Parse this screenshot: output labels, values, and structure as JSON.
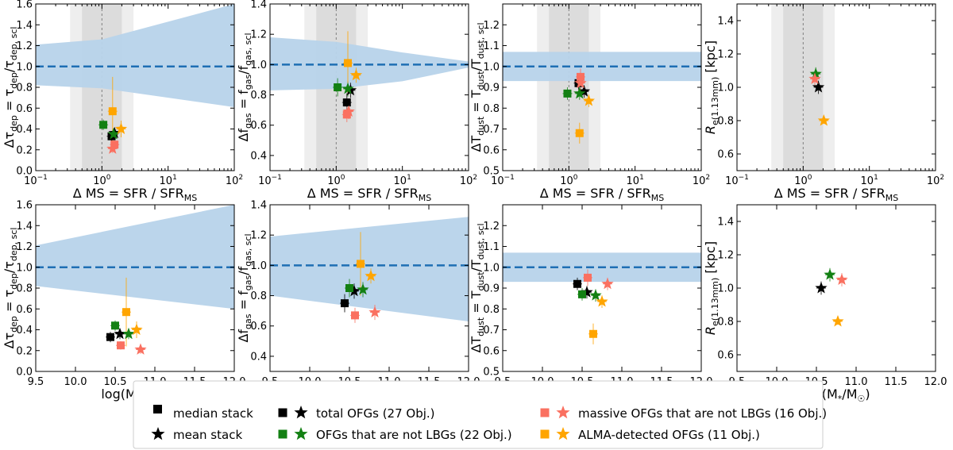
{
  "colors": {
    "total": "#000000",
    "not_lbg": "#138013",
    "massive": "#fa7060",
    "alma": "#ffa500",
    "band": "#b7d3ea",
    "ref_line": "#1f6fb4",
    "ms_inner": "#dcdcdc",
    "ms_outer": "#eeeeee"
  },
  "labels": {
    "xlabel_dms": "Δ MS = SFR / SFR",
    "xlabel_dms_sub": "MS",
    "xlabel_mass": "log(M",
    "xlabel_mass_star": "*",
    "xlabel_mass_mid": "/M",
    "xlabel_mass_sun": "☉",
    "xlabel_mass_end": ")",
    "xtick_log": [
      "10",
      "10",
      "10",
      "10"
    ],
    "xtick_log_exp": [
      "−1",
      "0",
      "1",
      "2"
    ],
    "xtick_mass": [
      "9.5",
      "10.0",
      "10.5",
      "11.0",
      "11.5",
      "12.0"
    ],
    "ylabel_tau_main": "Δτ",
    "ylabel_tau_sub": "dep",
    "ylabel_tau_eq": " = τ",
    "ylabel_tau_sub2": "dep",
    "ylabel_tau_div": "/τ",
    "ylabel_tau_sub3": "dep, scl",
    "ylabel_fgas_main": "Δf",
    "ylabel_fgas_sub": "gas",
    "ylabel_fgas_eq": " = f",
    "ylabel_fgas_sub2": "gas",
    "ylabel_fgas_div": "/f",
    "ylabel_fgas_sub3": "gas, scl",
    "ylabel_tdust_main": "ΔT",
    "ylabel_tdust_sub": "dust",
    "ylabel_tdust_eq": " = T",
    "ylabel_tdust_sub2": "dust",
    "ylabel_tdust_div": "/T",
    "ylabel_tdust_sub3": "dust, scl",
    "ylabel_re_main": "R",
    "ylabel_re_sub": "e(1.13mm)",
    "ylabel_re_unit": " [kpc]"
  },
  "legend": {
    "median_stack": "median stack",
    "mean_stack": "mean stack",
    "total": "total OFGs (27 Obj.)",
    "not_lbg": "OFGs that are not LBGs (22 Obj.)",
    "massive": "massive OFGs that are not LBGs (16 Obj.)",
    "alma": "ALMA-detected OFGs (11 Obj.)"
  },
  "chart_data": [
    {
      "id": "tau_vs_dms",
      "type": "scatter",
      "xscale": "log",
      "xlim": [
        0.1,
        100
      ],
      "ylim": [
        0.0,
        1.6
      ],
      "yticks": [
        "0.0",
        "0.2",
        "0.4",
        "0.6",
        "0.8",
        "1.0",
        "1.2",
        "1.4",
        "1.6"
      ],
      "ms_band_inner": [
        0.5,
        2.0
      ],
      "ms_band_outer": [
        0.33,
        3.0
      ],
      "ms_line": 1.0,
      "ref_line": 1.0,
      "band_x": [
        0.1,
        1,
        100
      ],
      "band_low": [
        0.82,
        0.79,
        0.61
      ],
      "band_high": [
        1.21,
        1.26,
        1.6
      ],
      "points": [
        {
          "group": "total",
          "marker": "square",
          "x": 1.4,
          "y": 0.33,
          "yerr": 0.05
        },
        {
          "group": "total",
          "marker": "star",
          "x": 1.55,
          "y": 0.36,
          "yerr": 0.05
        },
        {
          "group": "not_lbg",
          "marker": "square",
          "x": 1.05,
          "y": 0.44,
          "yerr": 0.05
        },
        {
          "group": "not_lbg",
          "marker": "star",
          "x": 1.5,
          "y": 0.35,
          "yerr": 0.05
        },
        {
          "group": "massive",
          "marker": "square",
          "x": 1.55,
          "y": 0.25,
          "yerr": 0.04
        },
        {
          "group": "massive",
          "marker": "star",
          "x": 1.45,
          "y": 0.21,
          "yerr": 0.04
        },
        {
          "group": "alma",
          "marker": "square",
          "x": 1.45,
          "y": 0.57,
          "yerr": 0.33
        },
        {
          "group": "alma",
          "marker": "star",
          "x": 1.95,
          "y": 0.4,
          "yerr": 0.08
        }
      ]
    },
    {
      "id": "fgas_vs_dms",
      "type": "scatter",
      "xscale": "log",
      "xlim": [
        0.1,
        100
      ],
      "ylim": [
        0.3,
        1.4
      ],
      "yticks": [
        "0.4",
        "0.6",
        "0.8",
        "1.0",
        "1.2",
        "1.4"
      ],
      "ms_band_inner": [
        0.5,
        2.0
      ],
      "ms_band_outer": [
        0.33,
        3.0
      ],
      "ms_line": 1.0,
      "ref_line": 1.0,
      "band_x": [
        0.1,
        1,
        10,
        100
      ],
      "band_low": [
        0.83,
        0.84,
        0.89,
        0.98
      ],
      "band_high": [
        1.18,
        1.15,
        1.08,
        1.02
      ],
      "points": [
        {
          "group": "total",
          "marker": "square",
          "x": 1.45,
          "y": 0.75,
          "yerr": 0.06
        },
        {
          "group": "total",
          "marker": "star",
          "x": 1.65,
          "y": 0.83,
          "yerr": 0.05
        },
        {
          "group": "not_lbg",
          "marker": "square",
          "x": 1.05,
          "y": 0.85,
          "yerr": 0.06
        },
        {
          "group": "not_lbg",
          "marker": "star",
          "x": 1.5,
          "y": 0.84,
          "yerr": 0.05
        },
        {
          "group": "massive",
          "marker": "square",
          "x": 1.45,
          "y": 0.67,
          "yerr": 0.05
        },
        {
          "group": "massive",
          "marker": "star",
          "x": 1.55,
          "y": 0.69,
          "yerr": 0.05
        },
        {
          "group": "alma",
          "marker": "square",
          "x": 1.5,
          "y": 1.01,
          "yerr": 0.21
        },
        {
          "group": "alma",
          "marker": "star",
          "x": 2.0,
          "y": 0.93,
          "yerr": 0.05
        }
      ]
    },
    {
      "id": "tdust_vs_dms",
      "type": "scatter",
      "xscale": "log",
      "xlim": [
        0.1,
        100
      ],
      "ylim": [
        0.5,
        1.3
      ],
      "yticks": [
        "0.5",
        "0.6",
        "0.7",
        "0.8",
        "0.9",
        "1.0",
        "1.1",
        "1.2"
      ],
      "ms_band_inner": [
        0.5,
        2.0
      ],
      "ms_band_outer": [
        0.33,
        3.0
      ],
      "ms_line": 1.0,
      "ref_line": 1.0,
      "band_x": [
        0.1,
        100
      ],
      "band_low": [
        0.93,
        0.93
      ],
      "band_high": [
        1.07,
        1.07
      ],
      "points": [
        {
          "group": "total",
          "marker": "square",
          "x": 1.4,
          "y": 0.92,
          "yerr": 0.03
        },
        {
          "group": "total",
          "marker": "star",
          "x": 1.7,
          "y": 0.88,
          "yerr": 0.03
        },
        {
          "group": "not_lbg",
          "marker": "square",
          "x": 0.95,
          "y": 0.87,
          "yerr": 0.03
        },
        {
          "group": "not_lbg",
          "marker": "star",
          "x": 1.45,
          "y": 0.87,
          "yerr": 0.03
        },
        {
          "group": "massive",
          "marker": "square",
          "x": 1.5,
          "y": 0.95,
          "yerr": 0.04
        },
        {
          "group": "massive",
          "marker": "star",
          "x": 1.5,
          "y": 0.92,
          "yerr": 0.03
        },
        {
          "group": "alma",
          "marker": "square",
          "x": 1.45,
          "y": 0.68,
          "yerr": 0.05
        },
        {
          "group": "alma",
          "marker": "star",
          "x": 2.0,
          "y": 0.835,
          "yerr": 0.03
        }
      ]
    },
    {
      "id": "re_vs_dms",
      "type": "scatter",
      "xscale": "log",
      "xlim": [
        0.1,
        100
      ],
      "ylim": [
        0.5,
        1.5
      ],
      "yticks": [
        "0.6",
        "0.8",
        "1.0",
        "1.2",
        "1.4"
      ],
      "ms_band_inner": [
        0.5,
        2.0
      ],
      "ms_band_outer": [
        0.33,
        3.0
      ],
      "ms_line": 1.0,
      "points": [
        {
          "group": "total",
          "marker": "star",
          "x": 1.7,
          "y": 1.0,
          "yerr": 0.04
        },
        {
          "group": "not_lbg",
          "marker": "star",
          "x": 1.55,
          "y": 1.08,
          "yerr": 0.04
        },
        {
          "group": "massive",
          "marker": "star",
          "x": 1.5,
          "y": 1.05,
          "yerr": 0.04
        },
        {
          "group": "alma",
          "marker": "star",
          "x": 2.05,
          "y": 0.8,
          "yerr": 0.02
        }
      ]
    },
    {
      "id": "tau_vs_mass",
      "type": "scatter",
      "xscale": "linear",
      "xlim": [
        9.5,
        12.0
      ],
      "ylim": [
        0.0,
        1.6
      ],
      "yticks": [
        "0.0",
        "0.2",
        "0.4",
        "0.6",
        "0.8",
        "1.0",
        "1.2",
        "1.4",
        "1.6"
      ],
      "ref_line": 1.0,
      "band_x": [
        9.5,
        12.0
      ],
      "band_low": [
        0.82,
        0.6
      ],
      "band_high": [
        1.21,
        1.6
      ],
      "points": [
        {
          "group": "total",
          "marker": "square",
          "x": 10.44,
          "y": 0.33,
          "yerr": 0.05
        },
        {
          "group": "total",
          "marker": "star",
          "x": 10.56,
          "y": 0.36,
          "yerr": 0.05
        },
        {
          "group": "not_lbg",
          "marker": "square",
          "x": 10.5,
          "y": 0.44,
          "yerr": 0.05
        },
        {
          "group": "not_lbg",
          "marker": "star",
          "x": 10.67,
          "y": 0.36,
          "yerr": 0.05
        },
        {
          "group": "massive",
          "marker": "square",
          "x": 10.57,
          "y": 0.25,
          "yerr": 0.04
        },
        {
          "group": "massive",
          "marker": "star",
          "x": 10.82,
          "y": 0.21,
          "yerr": 0.04
        },
        {
          "group": "alma",
          "marker": "square",
          "x": 10.64,
          "y": 0.57,
          "yerr": 0.33
        },
        {
          "group": "alma",
          "marker": "star",
          "x": 10.77,
          "y": 0.4,
          "yerr": 0.08
        }
      ]
    },
    {
      "id": "fgas_vs_mass",
      "type": "scatter",
      "xscale": "linear",
      "xlim": [
        9.5,
        12.0
      ],
      "ylim": [
        0.3,
        1.4
      ],
      "yticks": [
        "0.4",
        "0.6",
        "0.8",
        "1.0",
        "1.2",
        "1.4"
      ],
      "ref_line": 1.0,
      "band_x": [
        9.5,
        12.0
      ],
      "band_low": [
        0.8,
        0.63
      ],
      "band_high": [
        1.19,
        1.32
      ],
      "points": [
        {
          "group": "total",
          "marker": "square",
          "x": 10.44,
          "y": 0.75,
          "yerr": 0.06
        },
        {
          "group": "total",
          "marker": "star",
          "x": 10.56,
          "y": 0.83,
          "yerr": 0.05
        },
        {
          "group": "not_lbg",
          "marker": "square",
          "x": 10.5,
          "y": 0.85,
          "yerr": 0.06
        },
        {
          "group": "not_lbg",
          "marker": "star",
          "x": 10.67,
          "y": 0.84,
          "yerr": 0.05
        },
        {
          "group": "massive",
          "marker": "square",
          "x": 10.57,
          "y": 0.67,
          "yerr": 0.05
        },
        {
          "group": "massive",
          "marker": "star",
          "x": 10.82,
          "y": 0.69,
          "yerr": 0.05
        },
        {
          "group": "alma",
          "marker": "square",
          "x": 10.64,
          "y": 1.01,
          "yerr": 0.21
        },
        {
          "group": "alma",
          "marker": "star",
          "x": 10.77,
          "y": 0.93,
          "yerr": 0.05
        }
      ]
    },
    {
      "id": "tdust_vs_mass",
      "type": "scatter",
      "xscale": "linear",
      "xlim": [
        9.5,
        12.0
      ],
      "ylim": [
        0.5,
        1.3
      ],
      "yticks": [
        "0.5",
        "0.6",
        "0.7",
        "0.8",
        "0.9",
        "1.0",
        "1.1",
        "1.2"
      ],
      "ref_line": 1.0,
      "band_x": [
        9.5,
        12.0
      ],
      "band_low": [
        0.93,
        0.93
      ],
      "band_high": [
        1.07,
        1.07
      ],
      "points": [
        {
          "group": "total",
          "marker": "square",
          "x": 10.44,
          "y": 0.92,
          "yerr": 0.03
        },
        {
          "group": "total",
          "marker": "star",
          "x": 10.56,
          "y": 0.88,
          "yerr": 0.03
        },
        {
          "group": "not_lbg",
          "marker": "square",
          "x": 10.5,
          "y": 0.87,
          "yerr": 0.03
        },
        {
          "group": "not_lbg",
          "marker": "star",
          "x": 10.67,
          "y": 0.865,
          "yerr": 0.03
        },
        {
          "group": "massive",
          "marker": "square",
          "x": 10.57,
          "y": 0.95,
          "yerr": 0.04
        },
        {
          "group": "massive",
          "marker": "star",
          "x": 10.82,
          "y": 0.92,
          "yerr": 0.03
        },
        {
          "group": "alma",
          "marker": "square",
          "x": 10.64,
          "y": 0.68,
          "yerr": 0.05
        },
        {
          "group": "alma",
          "marker": "star",
          "x": 10.75,
          "y": 0.835,
          "yerr": 0.03
        }
      ]
    },
    {
      "id": "re_vs_mass",
      "type": "scatter",
      "xscale": "linear",
      "xlim": [
        9.5,
        12.0
      ],
      "ylim": [
        0.5,
        1.5
      ],
      "yticks": [
        "0.6",
        "0.8",
        "1.0",
        "1.2",
        "1.4"
      ],
      "points": [
        {
          "group": "total",
          "marker": "star",
          "x": 10.56,
          "y": 1.0,
          "yerr": 0.04
        },
        {
          "group": "not_lbg",
          "marker": "star",
          "x": 10.67,
          "y": 1.08,
          "yerr": 0.04
        },
        {
          "group": "massive",
          "marker": "star",
          "x": 10.82,
          "y": 1.05,
          "yerr": 0.04
        },
        {
          "group": "alma",
          "marker": "star",
          "x": 10.77,
          "y": 0.8,
          "yerr": 0.02
        }
      ]
    }
  ]
}
